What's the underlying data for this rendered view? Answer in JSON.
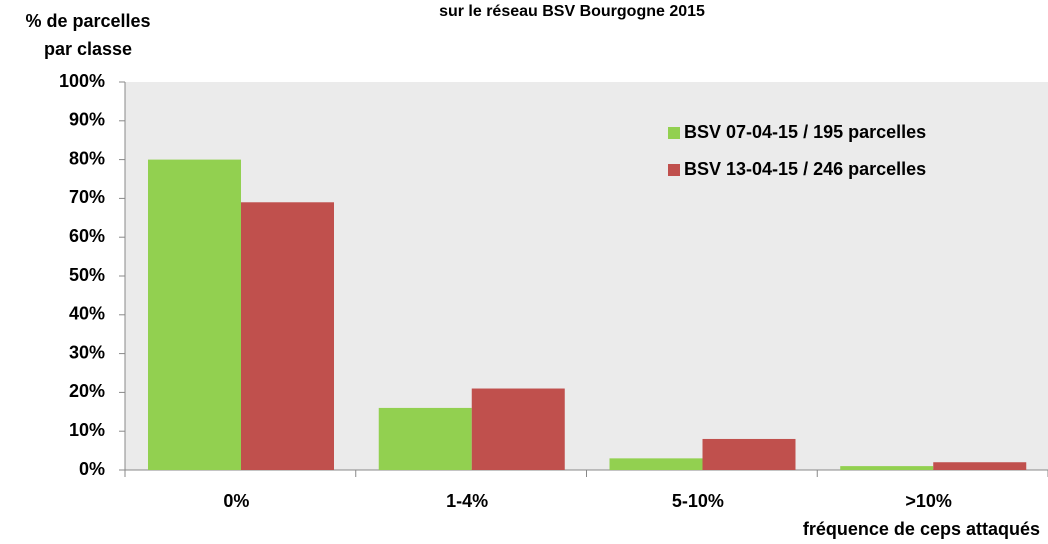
{
  "chart_data": {
    "type": "bar",
    "title": "sur le réseau BSV Bourgogne 2015",
    "y_label": [
      "% de parcelles",
      "par classe"
    ],
    "x_label": "fréquence de ceps attaqués",
    "categories": [
      "0%",
      "1-4%",
      "5-10%",
      ">10%"
    ],
    "series": [
      {
        "name": "BSV 07-04-15 / 195 parcelles",
        "color": "#92d050",
        "values": [
          80,
          16,
          3,
          1
        ]
      },
      {
        "name": "BSV 13-04-15 / 246 parcelles",
        "color": "#c0504d",
        "values": [
          69,
          21,
          8,
          2
        ]
      }
    ],
    "ylim": [
      0,
      100
    ],
    "yticks": [
      {
        "value": 0,
        "label": "0%"
      },
      {
        "value": 10,
        "label": "10%"
      },
      {
        "value": 20,
        "label": "20%"
      },
      {
        "value": 30,
        "label": "30%"
      },
      {
        "value": 40,
        "label": "40%"
      },
      {
        "value": 50,
        "label": "50%"
      },
      {
        "value": 60,
        "label": "60%"
      },
      {
        "value": 70,
        "label": "70%"
      },
      {
        "value": 80,
        "label": "80%"
      },
      {
        "value": 90,
        "label": "90%"
      },
      {
        "value": 100,
        "label": "100%"
      }
    ],
    "legend": "upper right"
  }
}
